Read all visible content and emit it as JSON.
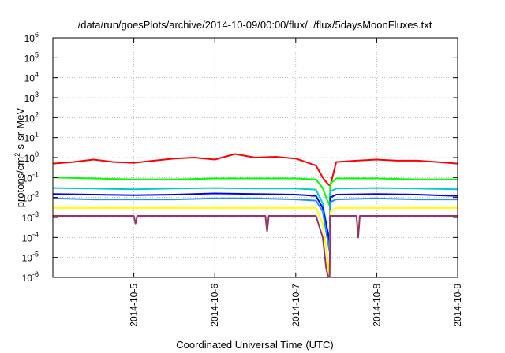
{
  "chart_data": {
    "type": "line",
    "title": "/data/run/goesPlots/archive/2014-10-09/00:00/flux/../flux/5daysMoonFluxes.txt",
    "xlabel": "Coordinated Universal Time (UTC)",
    "ylabel": {
      "base": "protons/cm",
      "sup": "2",
      "rest": "-s-sr-MeV"
    },
    "y_scale": "log",
    "ylim": [
      1e-06,
      1000000.0
    ],
    "y_ticks": [
      {
        "value": 1e-06,
        "exp": "-6"
      },
      {
        "value": 1e-05,
        "exp": "-5"
      },
      {
        "value": 0.0001,
        "exp": "-4"
      },
      {
        "value": 0.001,
        "exp": "-3"
      },
      {
        "value": 0.01,
        "exp": "-2"
      },
      {
        "value": 0.1,
        "exp": "-1"
      },
      {
        "value": 1,
        "exp": "0"
      },
      {
        "value": 10,
        "exp": "1"
      },
      {
        "value": 100,
        "exp": "2"
      },
      {
        "value": 1000,
        "exp": "3"
      },
      {
        "value": 10000,
        "exp": "4"
      },
      {
        "value": 100000,
        "exp": "5"
      },
      {
        "value": 1000000,
        "exp": "6"
      }
    ],
    "xlim": [
      "2014-10-04T00:00",
      "2014-10-09T00:00"
    ],
    "x_ticks": [
      "2014-10-5",
      "2014-10-6",
      "2014-10-7",
      "2014-10-8",
      "2014-10-9"
    ],
    "x_tick_dates": [
      "2014-10-05T00:00",
      "2014-10-06T00:00",
      "2014-10-07T00:00",
      "2014-10-08T00:00",
      "2014-10-09T00:00"
    ],
    "grid": true,
    "legend": "none",
    "series": [
      {
        "color": "#ff0000",
        "x": [
          "2014-10-04T00:00",
          "2014-10-04T06:00",
          "2014-10-04T12:00",
          "2014-10-04T18:00",
          "2014-10-05T00:00",
          "2014-10-05T06:00",
          "2014-10-05T12:00",
          "2014-10-05T18:00",
          "2014-10-06T00:00",
          "2014-10-06T06:00",
          "2014-10-06T12:00",
          "2014-10-06T18:00",
          "2014-10-07T00:00",
          "2014-10-07T06:00",
          "2014-10-07T08:00",
          "2014-10-07T09:00",
          "2014-10-07T10:00",
          "2014-10-07T10:15",
          "2014-10-07T12:00",
          "2014-10-07T18:00",
          "2014-10-08T00:00",
          "2014-10-08T06:00",
          "2014-10-08T12:00",
          "2014-10-08T18:00",
          "2014-10-09T00:00"
        ],
        "y": [
          0.5,
          0.6,
          0.8,
          0.6,
          0.55,
          0.7,
          0.9,
          1.0,
          0.8,
          1.5,
          1.0,
          1.1,
          0.9,
          0.4,
          0.1,
          0.06,
          0.04,
          0.04,
          0.6,
          0.7,
          0.8,
          0.7,
          0.7,
          0.6,
          0.5
        ]
      },
      {
        "color": "#00ff00",
        "x": [
          "2014-10-04T00:00",
          "2014-10-04T12:00",
          "2014-10-05T00:00",
          "2014-10-05T12:00",
          "2014-10-06T00:00",
          "2014-10-06T12:00",
          "2014-10-07T00:00",
          "2014-10-07T06:00",
          "2014-10-07T08:00",
          "2014-10-07T09:00",
          "2014-10-07T10:00",
          "2014-10-07T10:15",
          "2014-10-07T12:00",
          "2014-10-08T00:00",
          "2014-10-08T12:00",
          "2014-10-09T00:00"
        ],
        "y": [
          0.1,
          0.09,
          0.08,
          0.08,
          0.09,
          0.09,
          0.09,
          0.08,
          0.03,
          0.01,
          0.004,
          0.05,
          0.09,
          0.09,
          0.08,
          0.08
        ]
      },
      {
        "color": "#00cccc",
        "x": [
          "2014-10-04T00:00",
          "2014-10-04T12:00",
          "2014-10-05T00:00",
          "2014-10-05T12:00",
          "2014-10-06T00:00",
          "2014-10-06T12:00",
          "2014-10-07T00:00",
          "2014-10-07T06:00",
          "2014-10-07T08:00",
          "2014-10-07T09:00",
          "2014-10-07T10:00",
          "2014-10-07T10:15",
          "2014-10-07T12:00",
          "2014-10-08T00:00",
          "2014-10-08T12:00",
          "2014-10-09T00:00"
        ],
        "y": [
          0.03,
          0.028,
          0.026,
          0.028,
          0.03,
          0.028,
          0.028,
          0.025,
          0.005,
          0.0005,
          3e-05,
          0.02,
          0.028,
          0.03,
          0.028,
          0.026
        ]
      },
      {
        "color": "#0000ff",
        "x": [
          "2014-10-04T00:00",
          "2014-10-04T12:00",
          "2014-10-05T00:00",
          "2014-10-05T12:00",
          "2014-10-06T00:00",
          "2014-10-06T12:00",
          "2014-10-07T00:00",
          "2014-10-07T06:00",
          "2014-10-07T08:00",
          "2014-10-07T09:00",
          "2014-10-07T10:00",
          "2014-10-07T10:15",
          "2014-10-07T12:00",
          "2014-10-08T00:00",
          "2014-10-08T12:00",
          "2014-10-09T00:00"
        ],
        "y": [
          0.015,
          0.014,
          0.013,
          0.014,
          0.016,
          0.015,
          0.014,
          0.012,
          0.003,
          0.0005,
          6e-05,
          0.01,
          0.014,
          0.015,
          0.014,
          0.012
        ]
      },
      {
        "color": "#1e90ff",
        "x": [
          "2014-10-04T00:00",
          "2014-10-04T12:00",
          "2014-10-05T00:00",
          "2014-10-05T12:00",
          "2014-10-06T00:00",
          "2014-10-06T12:00",
          "2014-10-07T00:00",
          "2014-10-07T06:00",
          "2014-10-07T08:00",
          "2014-10-07T09:00",
          "2014-10-07T10:00",
          "2014-10-07T10:15",
          "2014-10-07T12:00",
          "2014-10-08T00:00",
          "2014-10-08T12:00",
          "2014-10-09T00:00"
        ],
        "y": [
          0.009,
          0.008,
          0.008,
          0.008,
          0.009,
          0.009,
          0.008,
          0.007,
          0.002,
          0.0002,
          2e-05,
          0.006,
          0.008,
          0.009,
          0.008,
          0.008
        ]
      },
      {
        "color": "#ffff00",
        "x": [
          "2014-10-04T00:00",
          "2014-10-04T12:00",
          "2014-10-05T00:00",
          "2014-10-05T12:00",
          "2014-10-06T00:00",
          "2014-10-06T12:00",
          "2014-10-07T00:00",
          "2014-10-07T06:00",
          "2014-10-07T08:00",
          "2014-10-07T09:00",
          "2014-10-07T10:00",
          "2014-10-07T10:15",
          "2014-10-07T12:00",
          "2014-10-08T00:00",
          "2014-10-08T12:00",
          "2014-10-09T00:00"
        ],
        "y": [
          0.003,
          0.003,
          0.003,
          0.003,
          0.003,
          0.003,
          0.003,
          0.003,
          0.0005,
          3e-05,
          1e-06,
          0.002,
          0.003,
          0.003,
          0.003,
          0.003
        ]
      },
      {
        "color": "#993366",
        "x": [
          "2014-10-04T00:00",
          "2014-10-04T12:00",
          "2014-10-05T00:00",
          "2014-10-05T00:30",
          "2014-10-05T01:00",
          "2014-10-05T12:00",
          "2014-10-06T00:00",
          "2014-10-06T12:00",
          "2014-10-06T15:00",
          "2014-10-06T15:30",
          "2014-10-06T16:00",
          "2014-10-07T00:00",
          "2014-10-07T06:00",
          "2014-10-07T08:00",
          "2014-10-07T09:00",
          "2014-10-07T10:00",
          "2014-10-07T10:15",
          "2014-10-07T12:00",
          "2014-10-07T18:00",
          "2014-10-07T18:30",
          "2014-10-07T19:00",
          "2014-10-08T00:00",
          "2014-10-08T12:00",
          "2014-10-09T00:00"
        ],
        "y": [
          0.0012,
          0.0012,
          0.0012,
          0.0005,
          0.0012,
          0.0012,
          0.0012,
          0.0012,
          0.0012,
          0.0002,
          0.0012,
          0.0012,
          0.0012,
          0.0001,
          3e-06,
          5e-07,
          0.0012,
          0.0012,
          0.0012,
          0.0001,
          0.0012,
          0.0012,
          0.0012,
          0.0012
        ]
      }
    ]
  }
}
